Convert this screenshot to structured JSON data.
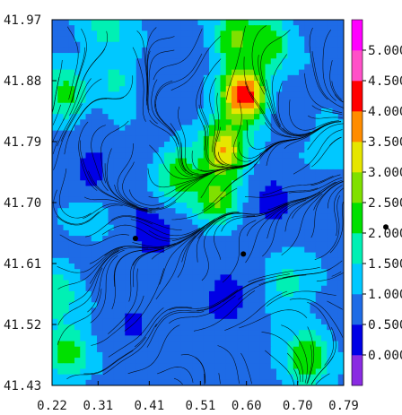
{
  "chart_data": {
    "type": "heatmap",
    "title": "",
    "xlabel": "",
    "ylabel": "",
    "x_ticks": [
      "0.22",
      "0.31",
      "0.41",
      "0.51",
      "0.60",
      "0.70",
      "0.79"
    ],
    "y_ticks": [
      "41.97",
      "41.88",
      "41.79",
      "41.70",
      "41.61",
      "41.52",
      "41.43"
    ],
    "xlim": [
      0.22,
      0.79
    ],
    "ylim": [
      41.43,
      41.97
    ],
    "overlay": "streamlines",
    "colorbar": {
      "labels": [
        "0.000",
        "0.500",
        "1.000",
        "1.500",
        "2.000",
        "2.500",
        "3.000",
        "3.500",
        "4.000",
        "4.500",
        "5.000"
      ],
      "bands": [
        "#8a2be2",
        "#0000e6",
        "#1e6be6",
        "#00c8ff",
        "#00f0b4",
        "#00e000",
        "#80e000",
        "#e6e600",
        "#ff8c00",
        "#ff0000",
        "#ff50c8",
        "#ff00ff"
      ],
      "range": [
        0,
        5
      ]
    },
    "markers": [
      {
        "x": 0.383,
        "y": 41.647
      },
      {
        "x": 0.594,
        "y": 41.624
      }
    ],
    "colorbar_marker_value": 2.1,
    "hotspots": [
      {
        "x": 0.595,
        "y": 41.86,
        "value": 4.6
      },
      {
        "x": 0.555,
        "y": 41.775,
        "value": 3.6
      },
      {
        "x": 0.54,
        "y": 41.71,
        "value": 2.7
      },
      {
        "x": 0.47,
        "y": 41.74,
        "value": 2.4
      },
      {
        "x": 0.58,
        "y": 41.94,
        "value": 2.7
      },
      {
        "x": 0.64,
        "y": 41.935,
        "value": 2.4
      },
      {
        "x": 0.245,
        "y": 41.86,
        "value": 2.2
      },
      {
        "x": 0.35,
        "y": 41.88,
        "value": 1.7
      },
      {
        "x": 0.33,
        "y": 41.96,
        "value": 1.8
      },
      {
        "x": 0.74,
        "y": 41.8,
        "value": 1.7
      },
      {
        "x": 0.72,
        "y": 41.47,
        "value": 2.5
      },
      {
        "x": 0.25,
        "y": 41.48,
        "value": 2.3
      },
      {
        "x": 0.23,
        "y": 41.56,
        "value": 1.8
      },
      {
        "x": 0.68,
        "y": 41.58,
        "value": 1.7
      },
      {
        "x": 0.3,
        "y": 41.7,
        "value": 1.2
      },
      {
        "x": 0.45,
        "y": 41.56,
        "value": 1.0
      }
    ],
    "cold_spots": [
      {
        "x": 0.3,
        "y": 41.75,
        "value": 0.3
      },
      {
        "x": 0.42,
        "y": 41.65,
        "value": 0.2
      },
      {
        "x": 0.65,
        "y": 41.7,
        "value": 0.3
      },
      {
        "x": 0.56,
        "y": 41.56,
        "value": 0.2
      },
      {
        "x": 0.38,
        "y": 41.52,
        "value": 0.4
      },
      {
        "x": 0.7,
        "y": 41.82,
        "value": 0.5
      },
      {
        "x": 0.42,
        "y": 41.88,
        "value": 0.5
      }
    ]
  }
}
